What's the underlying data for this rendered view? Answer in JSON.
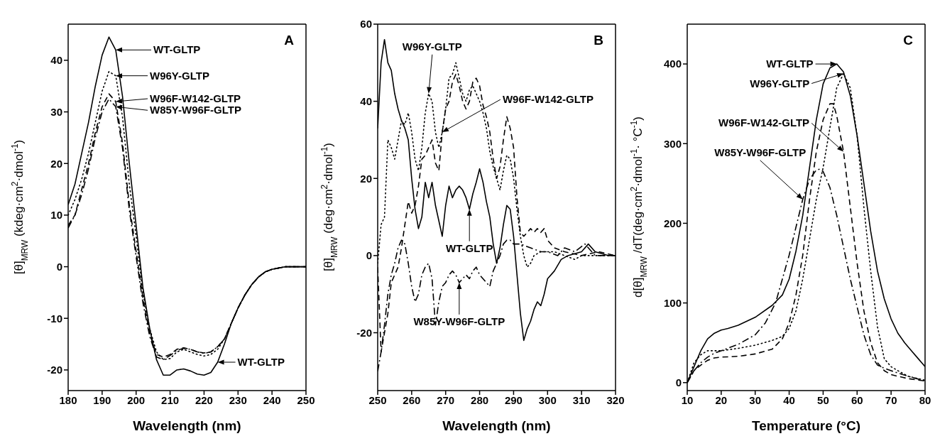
{
  "chart_data": [
    {
      "type": "line",
      "title": "A",
      "xlabel": "Wavelength (nm)",
      "ylabel": "[θ]$_{MRW}$ (kdeg·cm$^{2}$·dmol$^{-1}$)",
      "xlim": [
        180,
        250
      ],
      "xticks": [
        180,
        190,
        200,
        210,
        220,
        230,
        240,
        250
      ],
      "ylim": [
        -24,
        47
      ],
      "yticks": [
        -20,
        -10,
        0,
        10,
        20,
        30,
        40
      ],
      "grid": false,
      "legend": false,
      "marker": "none",
      "series": [
        {
          "color": "#000000",
          "line_style": "solid",
          "x": [
            180,
            182,
            184,
            186,
            188,
            190,
            192,
            194,
            196,
            198,
            200,
            202,
            204,
            206,
            208,
            210,
            212,
            214,
            216,
            218,
            220,
            222,
            224,
            226,
            228,
            230,
            232,
            234,
            236,
            238,
            240,
            244,
            250
          ],
          "values": [
            12,
            16,
            22,
            28,
            35,
            41,
            44.5,
            42,
            33,
            20,
            8,
            -4,
            -12,
            -18,
            -21,
            -21,
            -20,
            -19.8,
            -20.2,
            -20.8,
            -21,
            -20.5,
            -18.5,
            -15,
            -11,
            -8,
            -5.5,
            -3.5,
            -2,
            -1,
            -0.5,
            0,
            0
          ]
        },
        {
          "color": "#000000",
          "line_style": "dotted",
          "x": [
            180,
            182,
            184,
            186,
            188,
            190,
            192,
            194,
            196,
            198,
            200,
            202,
            204,
            206,
            208,
            210,
            212,
            214,
            216,
            218,
            220,
            222,
            224,
            226,
            228,
            230,
            232,
            234,
            236,
            238,
            240,
            244,
            250
          ],
          "values": [
            10,
            13,
            17,
            22,
            28,
            34,
            37.8,
            37,
            29,
            16,
            6,
            -5,
            -12,
            -16.5,
            -18,
            -17.8,
            -16.5,
            -16,
            -16.5,
            -17,
            -17.3,
            -17,
            -16,
            -14,
            -11,
            -8,
            -5.5,
            -3.5,
            -2,
            -1,
            -0.5,
            0,
            0
          ]
        },
        {
          "color": "#000000",
          "line_style": "dashed",
          "x": [
            180,
            182,
            184,
            186,
            188,
            190,
            192,
            194,
            196,
            198,
            200,
            202,
            204,
            206,
            208,
            210,
            212,
            214,
            216,
            218,
            220,
            222,
            224,
            226,
            228,
            230,
            232,
            234,
            236,
            238,
            240,
            244,
            250
          ],
          "values": [
            8,
            10,
            15,
            20,
            26,
            31,
            33.5,
            32,
            24,
            12,
            3,
            -6,
            -13,
            -17,
            -17.5,
            -17,
            -16,
            -15.7,
            -16,
            -16.5,
            -16.7,
            -16.5,
            -15.5,
            -14,
            -11,
            -8,
            -5.5,
            -3.5,
            -2,
            -1,
            -0.5,
            0,
            0
          ]
        },
        {
          "color": "#000000",
          "line_style": "dashdot",
          "x": [
            180,
            182,
            184,
            186,
            188,
            190,
            192,
            194,
            196,
            198,
            200,
            202,
            204,
            206,
            208,
            210,
            212,
            214,
            216,
            218,
            220,
            222,
            224,
            226,
            228,
            230,
            232,
            234,
            236,
            238,
            240,
            244,
            250
          ],
          "values": [
            7.5,
            10,
            14,
            19,
            25,
            30,
            32.5,
            31,
            23,
            11,
            2,
            -7,
            -13.5,
            -17.5,
            -18,
            -17.2,
            -16.2,
            -15.8,
            -16,
            -16.5,
            -16.8,
            -16.5,
            -15.5,
            -14,
            -11,
            -8,
            -5.5,
            -3.5,
            -2,
            -1,
            -0.5,
            0,
            0
          ]
        }
      ],
      "annotations": [
        "WT-GLTP",
        "W96Y-GLTP",
        "W96F-W142-GLTP",
        "W85Y-W96F-GLTP",
        "WT-GLTP"
      ]
    },
    {
      "type": "line",
      "title": "B",
      "xlabel": "Wavelength (nm)",
      "ylabel": "[θ]$_{MRW}$ (deg·cm$^{2}$·dmol$^{-1}$)",
      "xlim": [
        250,
        320
      ],
      "xticks": [
        250,
        260,
        270,
        280,
        290,
        300,
        310,
        320
      ],
      "ylim": [
        -35,
        60
      ],
      "yticks": [
        -20,
        0,
        20,
        40,
        60
      ],
      "grid": false,
      "legend": false,
      "marker": "none",
      "series": [
        {
          "color": "#000000",
          "line_style": "solid",
          "x": [
            250,
            251,
            252,
            253,
            254,
            255,
            256,
            257,
            258,
            259,
            260,
            261,
            262,
            263,
            264,
            265,
            266,
            267,
            268,
            269,
            270,
            271,
            272,
            273,
            274,
            275,
            276,
            277,
            278,
            279,
            280,
            281,
            282,
            283,
            284,
            285,
            286,
            287,
            288,
            289,
            290,
            291,
            292,
            293,
            294,
            295,
            296,
            297,
            298,
            299,
            300,
            302,
            304,
            306,
            310,
            312,
            314,
            316,
            318,
            320
          ],
          "values": [
            33,
            50,
            56,
            50,
            48,
            42,
            38,
            35,
            33,
            30,
            20,
            12,
            7,
            10,
            19,
            15,
            19,
            13,
            9,
            5,
            13,
            18,
            15,
            17,
            18,
            17,
            15,
            12,
            16,
            19,
            22.5,
            19,
            14,
            10,
            3,
            -2,
            2,
            8,
            13,
            12,
            5,
            -5,
            -15,
            -22,
            -19,
            -17,
            -14,
            -12,
            -13,
            -10,
            -6,
            -4,
            -1,
            0,
            1,
            3,
            1,
            0.5,
            0,
            0
          ]
        },
        {
          "color": "#000000",
          "line_style": "dotted",
          "x": [
            250,
            251,
            252,
            253,
            254,
            255,
            256,
            257,
            258,
            259,
            260,
            261,
            262,
            263,
            264,
            265,
            266,
            267,
            268,
            269,
            270,
            271,
            272,
            273,
            274,
            275,
            276,
            277,
            278,
            279,
            280,
            281,
            282,
            283,
            284,
            285,
            286,
            287,
            288,
            289,
            290,
            291,
            292,
            293,
            294,
            295,
            296,
            298,
            300,
            302,
            305,
            308,
            310,
            315,
            320
          ],
          "values": [
            -2,
            8,
            10,
            30,
            28,
            25,
            30,
            35,
            34,
            37,
            32,
            25,
            22,
            28,
            37,
            42,
            40,
            32,
            28,
            32,
            38,
            46,
            47,
            50,
            46,
            42,
            40,
            43,
            44,
            42,
            40,
            37,
            33,
            27,
            23,
            20,
            17,
            22,
            26,
            25,
            20,
            12,
            5,
            0,
            -3,
            -2,
            0,
            1,
            1,
            1,
            0,
            -1,
            0,
            0,
            0
          ]
        },
        {
          "color": "#000000",
          "line_style": "dashed",
          "x": [
            250,
            251,
            252,
            253,
            254,
            255,
            256,
            257,
            258,
            259,
            260,
            261,
            262,
            263,
            264,
            265,
            266,
            267,
            268,
            269,
            270,
            271,
            272,
            273,
            274,
            275,
            276,
            277,
            278,
            279,
            280,
            281,
            282,
            283,
            284,
            285,
            286,
            287,
            288,
            289,
            290,
            291,
            292,
            293,
            294,
            295,
            296,
            297,
            298,
            299,
            300,
            302,
            305,
            310,
            315,
            320
          ],
          "values": [
            -3,
            -25,
            -20,
            -15,
            -7,
            -5,
            -3,
            2,
            8,
            14,
            11,
            13,
            18,
            25,
            26,
            28,
            30,
            24,
            22,
            32,
            38,
            40,
            45,
            47,
            44,
            40,
            38,
            40,
            45,
            46,
            44,
            39,
            36,
            32,
            25,
            20,
            23,
            30,
            36,
            33,
            28,
            15,
            6,
            5,
            6,
            7,
            6,
            7,
            6,
            7,
            4,
            2,
            1,
            0,
            1,
            0
          ]
        },
        {
          "color": "#000000",
          "line_style": "dashdot",
          "x": [
            250,
            251,
            252,
            253,
            254,
            255,
            256,
            257,
            258,
            259,
            260,
            261,
            262,
            263,
            264,
            265,
            266,
            267,
            268,
            269,
            270,
            271,
            272,
            273,
            274,
            275,
            276,
            277,
            278,
            279,
            280,
            281,
            282,
            283,
            284,
            285,
            286,
            287,
            288,
            289,
            290,
            292,
            295,
            298,
            300,
            303,
            305,
            308,
            311,
            314,
            317,
            320
          ],
          "values": [
            -30,
            -25,
            -18,
            -10,
            -5,
            -2,
            2,
            4,
            3,
            -2,
            -8,
            -12,
            -10,
            -5,
            -3,
            -2,
            -6,
            -18,
            -12,
            -8,
            -7,
            -5,
            -4,
            -5,
            -7,
            -6,
            -5,
            -6,
            -4,
            -3,
            -5,
            -6,
            -7,
            -8,
            -4,
            -2,
            0,
            3,
            4,
            4,
            3,
            3,
            2,
            1,
            1,
            0,
            2,
            1,
            3,
            0,
            0,
            0
          ]
        }
      ],
      "annotations": [
        "W96Y-GLTP",
        "W96F-W142-GLTP",
        "WT-GLTP",
        "W85Y-W96F-GLTP"
      ]
    },
    {
      "type": "line",
      "title": "C",
      "xlabel": "Temperature (°C)",
      "ylabel": "d[θ]$_{MRW}$ /dT(deg·cm$^{2}$·dmol$^{-1}$· °C$^{-1}$)",
      "xlim": [
        10,
        80
      ],
      "xticks": [
        10,
        20,
        30,
        40,
        50,
        60,
        70,
        80
      ],
      "ylim": [
        -10,
        450
      ],
      "yticks": [
        0,
        100,
        200,
        300,
        400
      ],
      "grid": false,
      "legend": false,
      "marker": "none",
      "series": [
        {
          "color": "#000000",
          "line_style": "solid",
          "x": [
            10,
            12,
            14,
            16,
            18,
            20,
            22,
            25,
            30,
            35,
            38,
            40,
            42,
            44,
            46,
            48,
            50,
            52,
            54,
            56,
            58,
            60,
            62,
            64,
            66,
            68,
            70,
            72,
            74,
            76,
            78,
            80
          ],
          "values": [
            0,
            20,
            40,
            55,
            62,
            66,
            68,
            72,
            82,
            97,
            110,
            130,
            165,
            210,
            270,
            330,
            375,
            395,
            400,
            390,
            360,
            310,
            250,
            190,
            140,
            105,
            80,
            62,
            50,
            40,
            30,
            20
          ]
        },
        {
          "color": "#000000",
          "line_style": "dotted",
          "x": [
            10,
            12,
            14,
            16,
            18,
            20,
            25,
            30,
            35,
            38,
            40,
            42,
            44,
            46,
            48,
            50,
            52,
            54,
            56,
            58,
            60,
            62,
            64,
            66,
            68,
            70,
            72,
            75,
            80
          ],
          "values": [
            0,
            25,
            35,
            40,
            40,
            40,
            43,
            47,
            53,
            58,
            68,
            90,
            130,
            180,
            230,
            270,
            320,
            370,
            388,
            370,
            310,
            220,
            140,
            70,
            30,
            20,
            15,
            8,
            3
          ]
        },
        {
          "color": "#000000",
          "line_style": "dashed",
          "x": [
            10,
            12,
            14,
            16,
            18,
            20,
            25,
            30,
            35,
            38,
            40,
            42,
            44,
            46,
            48,
            50,
            52,
            53,
            54,
            56,
            58,
            60,
            62,
            64,
            66,
            68,
            70,
            75,
            80
          ],
          "values": [
            0,
            15,
            22,
            28,
            31,
            32,
            33,
            36,
            42,
            55,
            75,
            110,
            160,
            230,
            290,
            330,
            350,
            350,
            335,
            290,
            220,
            150,
            90,
            50,
            25,
            15,
            10,
            5,
            2
          ]
        },
        {
          "color": "#000000",
          "line_style": "dashdot",
          "x": [
            10,
            12,
            14,
            16,
            18,
            20,
            25,
            30,
            33,
            36,
            38,
            40,
            42,
            44,
            46,
            48,
            49,
            50,
            52,
            54,
            56,
            58,
            60,
            62,
            64,
            66,
            68,
            70,
            72,
            75,
            80
          ],
          "values": [
            0,
            15,
            25,
            32,
            37,
            40,
            48,
            60,
            75,
            100,
            130,
            160,
            195,
            230,
            255,
            267,
            268,
            265,
            245,
            210,
            170,
            130,
            95,
            60,
            35,
            22,
            18,
            15,
            12,
            8,
            2
          ]
        }
      ],
      "annotations": [
        "WT-GLTP",
        "W96Y-GLTP",
        "W96F-W142-GLTP",
        "W85Y-W96F-GLTP"
      ]
    }
  ]
}
